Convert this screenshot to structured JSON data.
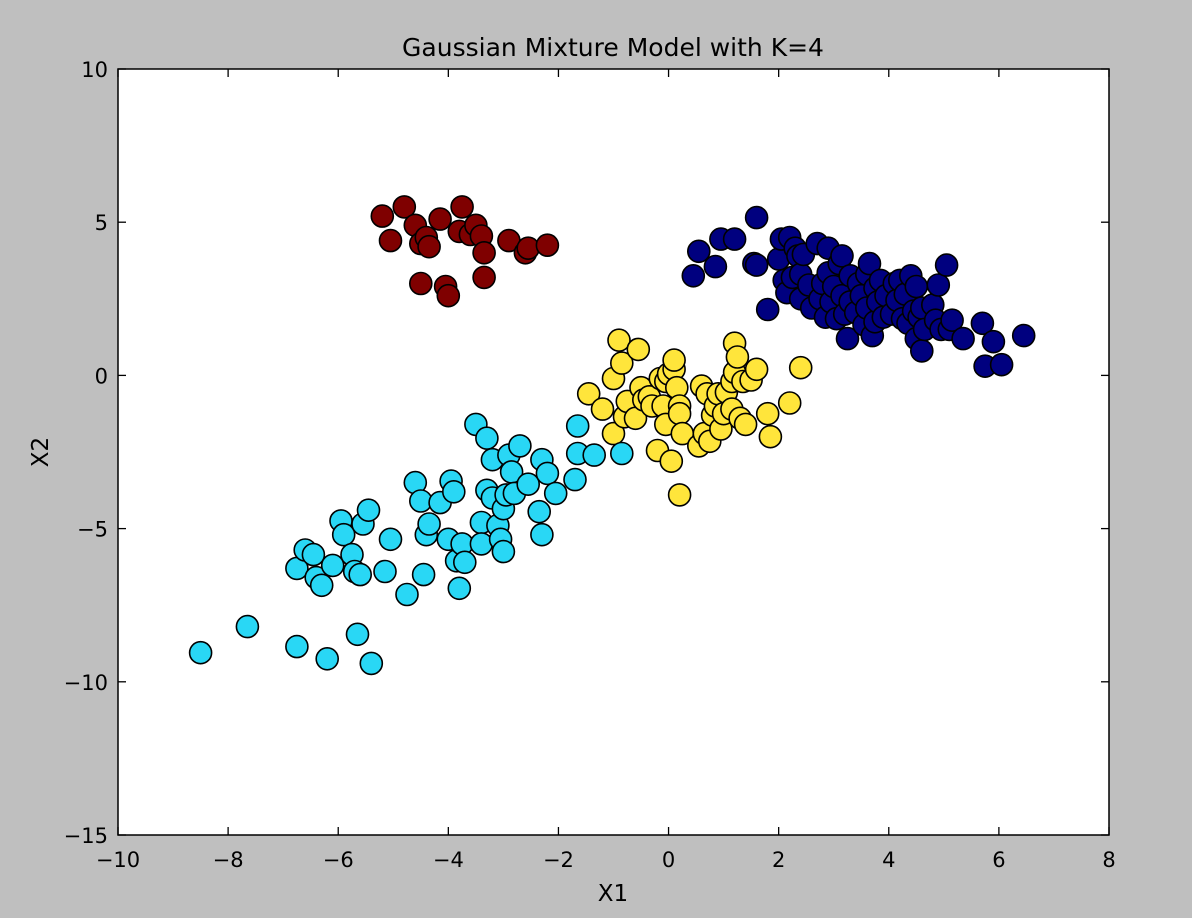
{
  "chart_data": {
    "type": "scatter",
    "title": "Gaussian Mixture Model with K=4",
    "xlabel": "X1",
    "ylabel": "X2",
    "xlim": [
      -10,
      8
    ],
    "ylim": [
      -15,
      10
    ],
    "xticks": [
      -10,
      -8,
      -6,
      -4,
      -2,
      0,
      2,
      4,
      6,
      8
    ],
    "yticks": [
      -15,
      -10,
      -5,
      0,
      5,
      10
    ],
    "xtick_labels": [
      "−10",
      "−8",
      "−6",
      "−4",
      "−2",
      "0",
      "2",
      "4",
      "6",
      "8"
    ],
    "ytick_labels": [
      "−15",
      "−10",
      "−5",
      "0",
      "5",
      "10"
    ],
    "grid": false,
    "legend": "none",
    "series": [
      {
        "color": "#7f0000",
        "points": [
          [
            -5.2,
            5.2
          ],
          [
            -5.05,
            4.4
          ],
          [
            -4.8,
            5.5
          ],
          [
            -4.6,
            4.9
          ],
          [
            -4.5,
            4.3
          ],
          [
            -4.4,
            4.5
          ],
          [
            -4.35,
            4.2
          ],
          [
            -4.15,
            5.1
          ],
          [
            -4.5,
            3.0
          ],
          [
            -4.05,
            2.9
          ],
          [
            -4.0,
            2.6
          ],
          [
            -3.8,
            4.7
          ],
          [
            -3.75,
            5.5
          ],
          [
            -3.6,
            4.6
          ],
          [
            -3.5,
            4.9
          ],
          [
            -3.4,
            4.55
          ],
          [
            -3.35,
            4.0
          ],
          [
            -3.35,
            3.2
          ],
          [
            -2.9,
            4.4
          ],
          [
            -2.6,
            4.0
          ],
          [
            -2.55,
            4.15
          ],
          [
            -2.2,
            4.25
          ]
        ]
      },
      {
        "color": "#00007f",
        "points": [
          [
            0.45,
            3.25
          ],
          [
            0.55,
            4.05
          ],
          [
            0.85,
            3.55
          ],
          [
            0.95,
            4.45
          ],
          [
            1.2,
            4.45
          ],
          [
            1.55,
            3.65
          ],
          [
            1.6,
            3.6
          ],
          [
            1.6,
            5.15
          ],
          [
            1.8,
            2.15
          ],
          [
            2.0,
            3.8
          ],
          [
            2.05,
            4.45
          ],
          [
            2.1,
            3.1
          ],
          [
            2.15,
            2.7
          ],
          [
            2.2,
            4.5
          ],
          [
            2.25,
            3.2
          ],
          [
            2.3,
            4.15
          ],
          [
            2.35,
            3.9
          ],
          [
            2.4,
            2.5
          ],
          [
            2.4,
            3.3
          ],
          [
            2.45,
            3.95
          ],
          [
            2.55,
            2.95
          ],
          [
            2.6,
            2.2
          ],
          [
            2.7,
            4.3
          ],
          [
            2.75,
            2.5
          ],
          [
            2.8,
            3.0
          ],
          [
            2.85,
            1.9
          ],
          [
            2.9,
            4.15
          ],
          [
            2.9,
            3.35
          ],
          [
            2.95,
            2.4
          ],
          [
            3.0,
            2.9
          ],
          [
            3.05,
            1.85
          ],
          [
            3.1,
            3.65
          ],
          [
            3.15,
            2.6
          ],
          [
            3.15,
            3.9
          ],
          [
            3.2,
            2.0
          ],
          [
            3.25,
            1.2
          ],
          [
            3.3,
            2.4
          ],
          [
            3.3,
            3.25
          ],
          [
            3.4,
            2.05
          ],
          [
            3.45,
            3.0
          ],
          [
            3.5,
            2.6
          ],
          [
            3.55,
            1.65
          ],
          [
            3.6,
            3.3
          ],
          [
            3.6,
            2.2
          ],
          [
            3.65,
            3.65
          ],
          [
            3.7,
            1.3
          ],
          [
            3.75,
            2.85
          ],
          [
            3.75,
            1.75
          ],
          [
            3.8,
            2.4
          ],
          [
            3.85,
            3.1
          ],
          [
            3.9,
            1.9
          ],
          [
            3.95,
            2.6
          ],
          [
            4.05,
            2.0
          ],
          [
            4.1,
            3.0
          ],
          [
            4.15,
            2.45
          ],
          [
            4.2,
            3.1
          ],
          [
            4.25,
            1.85
          ],
          [
            4.3,
            2.65
          ],
          [
            4.35,
            1.7
          ],
          [
            4.4,
            3.25
          ],
          [
            4.45,
            2.1
          ],
          [
            4.5,
            1.2
          ],
          [
            4.5,
            2.9
          ],
          [
            4.55,
            1.9
          ],
          [
            4.6,
            2.2
          ],
          [
            4.6,
            0.8
          ],
          [
            4.65,
            1.5
          ],
          [
            4.8,
            2.3
          ],
          [
            4.85,
            1.8
          ],
          [
            4.9,
            2.95
          ],
          [
            4.95,
            1.5
          ],
          [
            5.05,
            3.6
          ],
          [
            5.1,
            1.5
          ],
          [
            5.15,
            1.8
          ],
          [
            5.35,
            1.2
          ],
          [
            5.7,
            1.7
          ],
          [
            5.75,
            0.3
          ],
          [
            5.9,
            1.1
          ],
          [
            6.05,
            0.35
          ],
          [
            6.45,
            1.3
          ]
        ]
      },
      {
        "color": "#ffe53b",
        "points": [
          [
            -1.45,
            -0.6
          ],
          [
            -1.2,
            -1.1
          ],
          [
            -1.0,
            -1.9
          ],
          [
            -1.0,
            -0.1
          ],
          [
            -0.9,
            1.15
          ],
          [
            -0.85,
            0.4
          ],
          [
            -0.8,
            -1.35
          ],
          [
            -0.75,
            -0.85
          ],
          [
            -0.6,
            -1.4
          ],
          [
            -0.55,
            0.85
          ],
          [
            -0.5,
            -0.4
          ],
          [
            -0.45,
            -0.8
          ],
          [
            -0.35,
            -0.7
          ],
          [
            -0.3,
            -1.0
          ],
          [
            -0.2,
            -2.45
          ],
          [
            -0.15,
            -0.1
          ],
          [
            -0.1,
            -1.0
          ],
          [
            -0.05,
            -1.6
          ],
          [
            -0.05,
            -0.2
          ],
          [
            0.0,
            0.05
          ],
          [
            0.05,
            -2.8
          ],
          [
            0.1,
            0.2
          ],
          [
            0.1,
            0.5
          ],
          [
            0.15,
            -0.4
          ],
          [
            0.2,
            -1.0
          ],
          [
            0.2,
            -1.25
          ],
          [
            0.25,
            -1.9
          ],
          [
            0.2,
            -3.9
          ],
          [
            0.55,
            -2.3
          ],
          [
            0.6,
            -0.35
          ],
          [
            0.65,
            -1.9
          ],
          [
            0.7,
            -0.6
          ],
          [
            0.75,
            -2.15
          ],
          [
            0.8,
            -1.3
          ],
          [
            0.85,
            -1.0
          ],
          [
            0.9,
            -0.6
          ],
          [
            0.95,
            -1.75
          ],
          [
            1.0,
            -1.25
          ],
          [
            1.05,
            -0.55
          ],
          [
            1.15,
            -1.1
          ],
          [
            1.15,
            -0.2
          ],
          [
            1.2,
            0.1
          ],
          [
            1.2,
            1.05
          ],
          [
            1.25,
            0.6
          ],
          [
            1.3,
            -1.4
          ],
          [
            1.35,
            -0.2
          ],
          [
            1.4,
            -1.6
          ],
          [
            1.5,
            -0.15
          ],
          [
            1.6,
            0.2
          ],
          [
            1.8,
            -1.25
          ],
          [
            1.85,
            -2.0
          ],
          [
            2.2,
            -0.9
          ],
          [
            2.4,
            0.25
          ]
        ]
      },
      {
        "color": "#29d7f5",
        "points": [
          [
            -8.5,
            -9.05
          ],
          [
            -7.65,
            -8.2
          ],
          [
            -6.75,
            -8.85
          ],
          [
            -6.75,
            -6.3
          ],
          [
            -6.6,
            -5.7
          ],
          [
            -6.45,
            -5.85
          ],
          [
            -6.4,
            -6.6
          ],
          [
            -6.3,
            -6.85
          ],
          [
            -6.2,
            -9.25
          ],
          [
            -6.1,
            -6.2
          ],
          [
            -5.95,
            -4.75
          ],
          [
            -5.9,
            -5.2
          ],
          [
            -5.75,
            -5.85
          ],
          [
            -5.7,
            -6.4
          ],
          [
            -5.65,
            -8.45
          ],
          [
            -5.6,
            -6.5
          ],
          [
            -5.55,
            -4.85
          ],
          [
            -5.45,
            -4.4
          ],
          [
            -5.4,
            -9.4
          ],
          [
            -5.15,
            -6.4
          ],
          [
            -5.05,
            -5.35
          ],
          [
            -4.75,
            -7.15
          ],
          [
            -4.6,
            -3.5
          ],
          [
            -4.5,
            -4.1
          ],
          [
            -4.45,
            -6.5
          ],
          [
            -4.4,
            -5.2
          ],
          [
            -4.35,
            -4.85
          ],
          [
            -4.15,
            -4.15
          ],
          [
            -4.0,
            -5.35
          ],
          [
            -3.95,
            -3.45
          ],
          [
            -3.9,
            -3.8
          ],
          [
            -3.85,
            -6.05
          ],
          [
            -3.8,
            -6.95
          ],
          [
            -3.75,
            -5.5
          ],
          [
            -3.7,
            -6.1
          ],
          [
            -3.5,
            -1.6
          ],
          [
            -3.4,
            -4.8
          ],
          [
            -3.4,
            -5.5
          ],
          [
            -3.3,
            -3.75
          ],
          [
            -3.3,
            -2.05
          ],
          [
            -3.2,
            -2.75
          ],
          [
            -3.2,
            -4.0
          ],
          [
            -3.1,
            -4.9
          ],
          [
            -3.05,
            -5.35
          ],
          [
            -3.0,
            -5.75
          ],
          [
            -3.0,
            -4.35
          ],
          [
            -2.95,
            -3.9
          ],
          [
            -2.9,
            -2.6
          ],
          [
            -2.85,
            -3.15
          ],
          [
            -2.8,
            -3.85
          ],
          [
            -2.7,
            -2.3
          ],
          [
            -2.55,
            -3.55
          ],
          [
            -2.35,
            -4.45
          ],
          [
            -2.3,
            -2.75
          ],
          [
            -2.3,
            -5.2
          ],
          [
            -2.2,
            -3.2
          ],
          [
            -2.05,
            -3.85
          ],
          [
            -1.7,
            -3.4
          ],
          [
            -1.65,
            -2.55
          ],
          [
            -1.65,
            -1.65
          ],
          [
            -1.35,
            -2.6
          ],
          [
            -0.85,
            -2.55
          ]
        ]
      }
    ]
  }
}
